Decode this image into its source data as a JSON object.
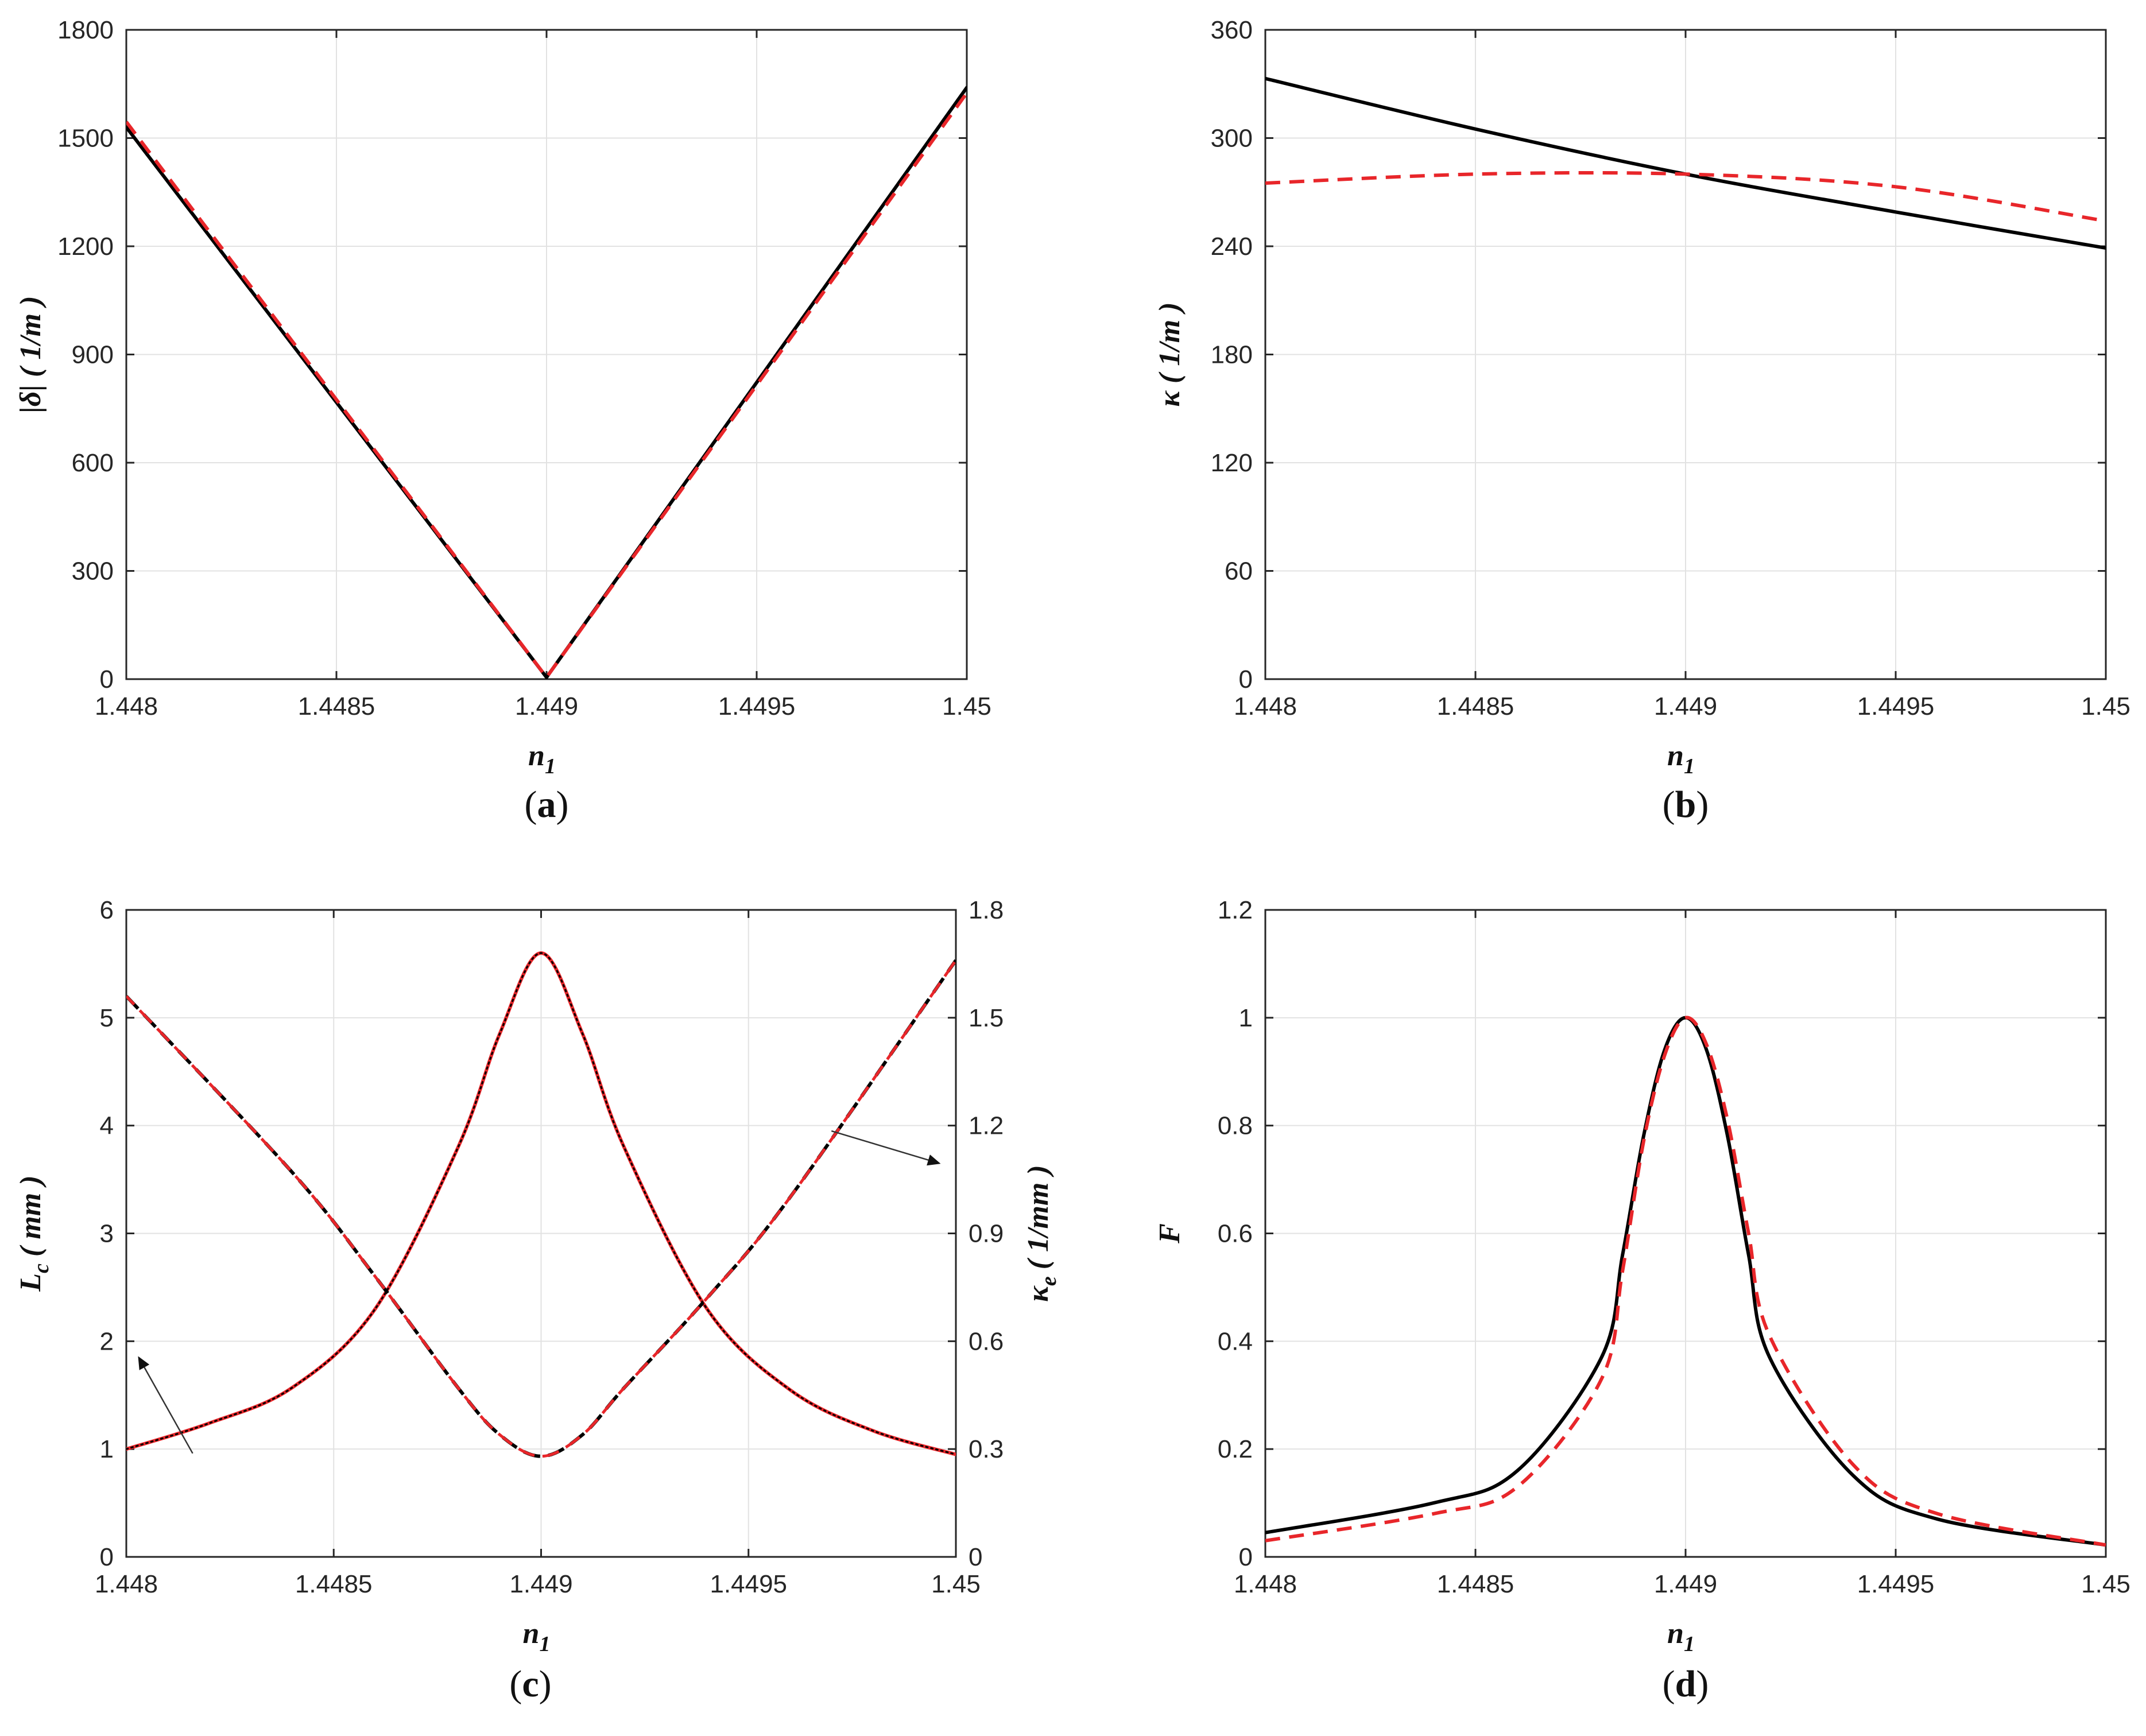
{
  "figure": {
    "panels": [
      "a",
      "b",
      "c",
      "d"
    ]
  },
  "colors": {
    "solid": "#000000",
    "dashed": "#e8262a",
    "grid": "#e2e2e2",
    "axis": "#262626"
  },
  "chart_data": [
    {
      "id": "a",
      "type": "line",
      "caption": "a",
      "xlabel": "n",
      "xlabel_sub": "1",
      "ylabel": "|δ| ( 1/m )",
      "xlim": [
        1.448,
        1.45
      ],
      "ylim": [
        0,
        1800
      ],
      "xticks": [
        1.448,
        1.4485,
        1.449,
        1.4495,
        1.45
      ],
      "xticklabels": [
        "1.448",
        "1.4485",
        "1.449",
        "1.4495",
        "1.45"
      ],
      "yticks": [
        0,
        300,
        600,
        900,
        1200,
        1500,
        1800
      ],
      "yticklabels": [
        "0",
        "300",
        "600",
        "900",
        "1200",
        "1500",
        "1800"
      ],
      "grid": true,
      "series": [
        {
          "name": "solid",
          "style": "solid",
          "x": [
            1.448,
            1.449,
            1.45
          ],
          "y": [
            1530,
            5,
            1640
          ]
        },
        {
          "name": "dashed",
          "style": "dashed",
          "x": [
            1.448,
            1.449,
            1.45
          ],
          "y": [
            1545,
            5,
            1625
          ]
        }
      ]
    },
    {
      "id": "b",
      "type": "line",
      "caption": "b",
      "xlabel": "n",
      "xlabel_sub": "1",
      "ylabel": "κ ( 1/m )",
      "xlim": [
        1.448,
        1.45
      ],
      "ylim": [
        0,
        360
      ],
      "xticks": [
        1.448,
        1.4485,
        1.449,
        1.4495,
        1.45
      ],
      "xticklabels": [
        "1.448",
        "1.4485",
        "1.449",
        "1.4495",
        "1.45"
      ],
      "yticks": [
        0,
        60,
        120,
        180,
        240,
        300,
        360
      ],
      "yticklabels": [
        "0",
        "60",
        "120",
        "180",
        "240",
        "300",
        "360"
      ],
      "grid": true,
      "series": [
        {
          "name": "solid",
          "style": "solid",
          "x": [
            1.448,
            1.4485,
            1.449,
            1.4495,
            1.45
          ],
          "y": [
            333,
            305,
            280,
            259,
            239
          ]
        },
        {
          "name": "dashed",
          "style": "dashed",
          "x": [
            1.448,
            1.4485,
            1.449,
            1.4495,
            1.45
          ],
          "y": [
            275,
            280,
            280,
            273,
            254
          ]
        }
      ]
    },
    {
      "id": "c",
      "type": "line",
      "caption": "c",
      "xlabel": "n",
      "xlabel_sub": "1",
      "ylabel": "L",
      "ylabel_sub": "c",
      "ylabel_unit": "( mm )",
      "y2label": "κ",
      "y2label_sub": "e",
      "y2label_unit": "( 1/mm )",
      "xlim": [
        1.448,
        1.45
      ],
      "ylim": [
        0,
        6
      ],
      "y2lim": [
        0,
        1.8
      ],
      "xticks": [
        1.448,
        1.4485,
        1.449,
        1.4495,
        1.45
      ],
      "xticklabels": [
        "1.448",
        "1.4485",
        "1.449",
        "1.4495",
        "1.45"
      ],
      "yticks": [
        0,
        1,
        2,
        3,
        4,
        5,
        6
      ],
      "yticklabels": [
        "0",
        "1",
        "2",
        "3",
        "4",
        "5",
        "6"
      ],
      "y2ticks": [
        0,
        0.3,
        0.6,
        0.9,
        1.2,
        1.5,
        1.8
      ],
      "y2ticklabels": [
        "0",
        "0.3",
        "0.6",
        "0.9",
        "1.2",
        "1.5",
        "1.8"
      ],
      "grid": true,
      "series": [
        {
          "name": "Lc",
          "axis": "left",
          "style": "solid-red-dotted",
          "x": [
            1.448,
            1.4482,
            1.4484,
            1.4486,
            1.4488,
            1.4489,
            1.449,
            1.4491,
            1.4492,
            1.4494,
            1.4496,
            1.4498,
            1.45
          ],
          "y": [
            1.0,
            1.24,
            1.57,
            2.3,
            3.8,
            4.85,
            5.6,
            4.85,
            3.8,
            2.3,
            1.55,
            1.17,
            0.95
          ]
        },
        {
          "name": "κe",
          "axis": "right",
          "style": "dashed-black-red",
          "x": [
            1.448,
            1.4484,
            1.4486,
            1.4488,
            1.4489,
            1.449,
            1.4491,
            1.4492,
            1.4494,
            1.4496,
            1.45
          ],
          "y": [
            1.56,
            1.07,
            0.78,
            0.47,
            0.34,
            0.28,
            0.34,
            0.47,
            0.72,
            1.0,
            1.66
          ]
        }
      ],
      "arrows": [
        {
          "points_to": "left-axis",
          "from": [
            1.44816,
            0.96
          ],
          "to": [
            1.44803,
            1.85
          ]
        },
        {
          "points_to": "right-axis",
          "from": [
            1.4497,
            3.95
          ],
          "to": [
            1.44996,
            3.65
          ]
        }
      ]
    },
    {
      "id": "d",
      "type": "line",
      "caption": "d",
      "xlabel": "n",
      "xlabel_sub": "1",
      "ylabel": "F",
      "xlim": [
        1.448,
        1.45
      ],
      "ylim": [
        0,
        1.2
      ],
      "xticks": [
        1.448,
        1.4485,
        1.449,
        1.4495,
        1.45
      ],
      "xticklabels": [
        "1.448",
        "1.4485",
        "1.449",
        "1.4495",
        "1.45"
      ],
      "yticks": [
        0,
        0.2,
        0.4,
        0.6,
        0.8,
        1.0,
        1.2
      ],
      "yticklabels": [
        "0",
        "0.2",
        "0.4",
        "0.6",
        "0.8",
        "1",
        "1.2"
      ],
      "grid": true,
      "series": [
        {
          "name": "solid",
          "style": "solid",
          "x": [
            1.448,
            1.4484,
            1.4486,
            1.4488,
            1.44885,
            1.4489,
            1.44895,
            1.449,
            1.44905,
            1.4491,
            1.44915,
            1.4492,
            1.4494,
            1.4496,
            1.45
          ],
          "y": [
            0.045,
            0.1,
            0.16,
            0.37,
            0.56,
            0.78,
            0.94,
            1.0,
            0.94,
            0.78,
            0.56,
            0.37,
            0.15,
            0.07,
            0.022
          ]
        },
        {
          "name": "dashed",
          "style": "dashed",
          "x": [
            1.448,
            1.4484,
            1.4486,
            1.4488,
            1.44885,
            1.4489,
            1.44895,
            1.449,
            1.44905,
            1.4491,
            1.44915,
            1.4492,
            1.4494,
            1.4496,
            1.45
          ],
          "y": [
            0.03,
            0.08,
            0.13,
            0.33,
            0.53,
            0.77,
            0.93,
            1.0,
            0.95,
            0.81,
            0.6,
            0.41,
            0.17,
            0.08,
            0.022
          ]
        }
      ]
    }
  ]
}
